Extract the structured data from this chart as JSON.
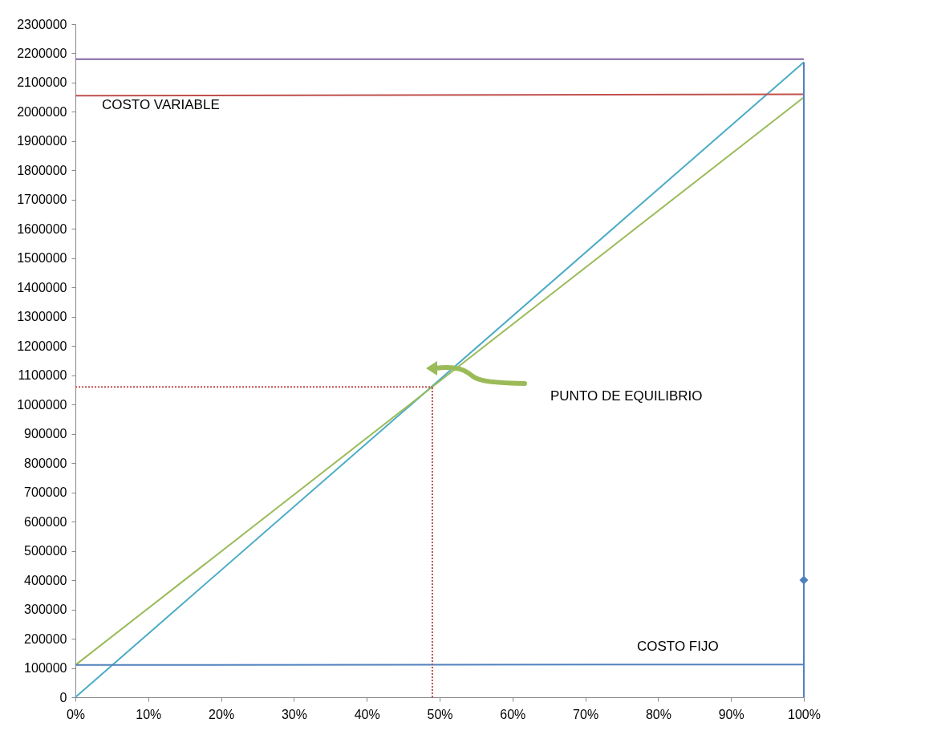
{
  "chart_data": {
    "type": "line",
    "xlim": [
      0,
      100
    ],
    "ylim": [
      0,
      2300000
    ],
    "xticks": [
      {
        "value": 0,
        "label": "0%"
      },
      {
        "value": 10,
        "label": "10%"
      },
      {
        "value": 20,
        "label": "20%"
      },
      {
        "value": 30,
        "label": "30%"
      },
      {
        "value": 40,
        "label": "40%"
      },
      {
        "value": 50,
        "label": "50%"
      },
      {
        "value": 60,
        "label": "60%"
      },
      {
        "value": 70,
        "label": "70%"
      },
      {
        "value": 80,
        "label": "80%"
      },
      {
        "value": 90,
        "label": "90%"
      },
      {
        "value": 100,
        "label": "100%"
      }
    ],
    "yticks": [
      0,
      100000,
      200000,
      300000,
      400000,
      500000,
      600000,
      700000,
      800000,
      900000,
      1000000,
      1100000,
      1200000,
      1300000,
      1400000,
      1500000,
      1600000,
      1700000,
      1800000,
      1900000,
      2000000,
      2100000,
      2200000,
      2300000
    ],
    "grid": false,
    "series": [
      {
        "color": "#4bacc6",
        "x": [
          0,
          100
        ],
        "values": [
          0,
          2170000
        ]
      },
      {
        "color": "#9bbb59",
        "x": [
          0,
          100
        ],
        "values": [
          110000,
          2050000
        ]
      },
      {
        "color": "#8064a2",
        "x": [
          0,
          100
        ],
        "values": [
          2180000,
          2180000
        ]
      },
      {
        "color": "#c0504d",
        "x": [
          0,
          100
        ],
        "values": [
          2055000,
          2060000
        ]
      },
      {
        "color": "#4f81bd",
        "x": [
          0,
          100
        ],
        "values": [
          110000,
          112000
        ]
      },
      {
        "color": "#4f81bd",
        "x": [
          100,
          100
        ],
        "values": [
          0,
          2170000
        ]
      },
      {
        "type": "scatter",
        "color": "#4f81bd",
        "marker": "diamond",
        "x": [
          100
        ],
        "values": [
          400000
        ]
      },
      {
        "type": "line",
        "color": "#c0504d",
        "line_style": "dotted",
        "x": [
          0,
          49
        ],
        "values": [
          1060000,
          1060000
        ]
      },
      {
        "type": "line",
        "color": "#c0504d",
        "line_style": "dotted",
        "x": [
          49,
          49
        ],
        "values": [
          0,
          1060000
        ]
      }
    ],
    "annotations": [
      "COSTO VARIABLE",
      "COSTO FIJO",
      "PUNTO DE EQUILIBRIO"
    ]
  }
}
